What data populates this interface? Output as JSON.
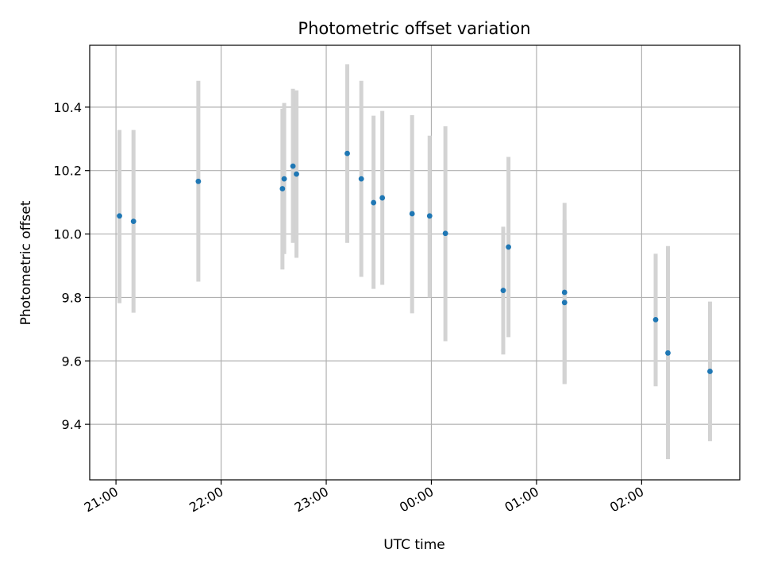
{
  "chart_data": {
    "type": "scatter",
    "title": "Photometric offset variation",
    "xlabel": "UTC time",
    "ylabel": "Photometric offset",
    "x_ticks": [
      "21:00",
      "22:00",
      "23:00",
      "00:00",
      "01:00",
      "02:00"
    ],
    "y_ticks": [
      "9.4",
      "9.6",
      "9.8",
      "10.0",
      "10.2",
      "10.4"
    ],
    "y_tick_values": [
      9.4,
      9.6,
      9.8,
      10.0,
      10.2,
      10.4
    ],
    "xlim": [
      "20:45",
      "02:56"
    ],
    "ylim": [
      9.225,
      10.595
    ],
    "grid": true,
    "colors": {
      "point": "#1f77b4",
      "error_bar": "#d3d3d3",
      "grid": "#b0b0b0"
    },
    "points": [
      {
        "x": "21:02",
        "y": 10.057,
        "err": [
          9.782,
          10.328
        ]
      },
      {
        "x": "21:10",
        "y": 10.04,
        "err": [
          9.752,
          10.328
        ]
      },
      {
        "x": "21:47",
        "y": 10.166,
        "err": [
          9.85,
          10.483
        ]
      },
      {
        "x": "22:35",
        "y": 10.143,
        "err": [
          9.888,
          10.395
        ]
      },
      {
        "x": "22:36",
        "y": 10.174,
        "err": [
          9.937,
          10.413
        ]
      },
      {
        "x": "22:41",
        "y": 10.214,
        "err": [
          9.972,
          10.458
        ]
      },
      {
        "x": "22:43",
        "y": 10.189,
        "err": [
          9.925,
          10.453
        ]
      },
      {
        "x": "23:12",
        "y": 10.254,
        "err": [
          9.972,
          10.535
        ]
      },
      {
        "x": "23:20",
        "y": 10.174,
        "err": [
          9.865,
          10.483
        ]
      },
      {
        "x": "23:27",
        "y": 10.099,
        "err": [
          9.827,
          10.373
        ]
      },
      {
        "x": "23:32",
        "y": 10.114,
        "err": [
          9.84,
          10.388
        ]
      },
      {
        "x": "23:49",
        "y": 10.064,
        "err": [
          9.75,
          10.375
        ]
      },
      {
        "x": "23:59",
        "y": 10.057,
        "err": [
          9.8,
          10.31
        ]
      },
      {
        "x": "00:08",
        "y": 10.002,
        "err": [
          9.662,
          10.34
        ]
      },
      {
        "x": "00:41",
        "y": 9.822,
        "err": [
          9.62,
          10.023
        ]
      },
      {
        "x": "00:44",
        "y": 9.959,
        "err": [
          9.675,
          10.243
        ]
      },
      {
        "x": "01:16",
        "y": 9.816,
        "err": [
          9.527,
          10.098
        ]
      },
      {
        "x": "01:16",
        "y": 9.784,
        "err": [
          9.527,
          10.045
        ]
      },
      {
        "x": "02:08",
        "y": 9.73,
        "err": [
          9.52,
          9.938
        ]
      },
      {
        "x": "02:15",
        "y": 9.625,
        "err": [
          9.29,
          9.962
        ]
      },
      {
        "x": "02:39",
        "y": 9.567,
        "err": [
          9.347,
          9.787
        ]
      }
    ]
  }
}
